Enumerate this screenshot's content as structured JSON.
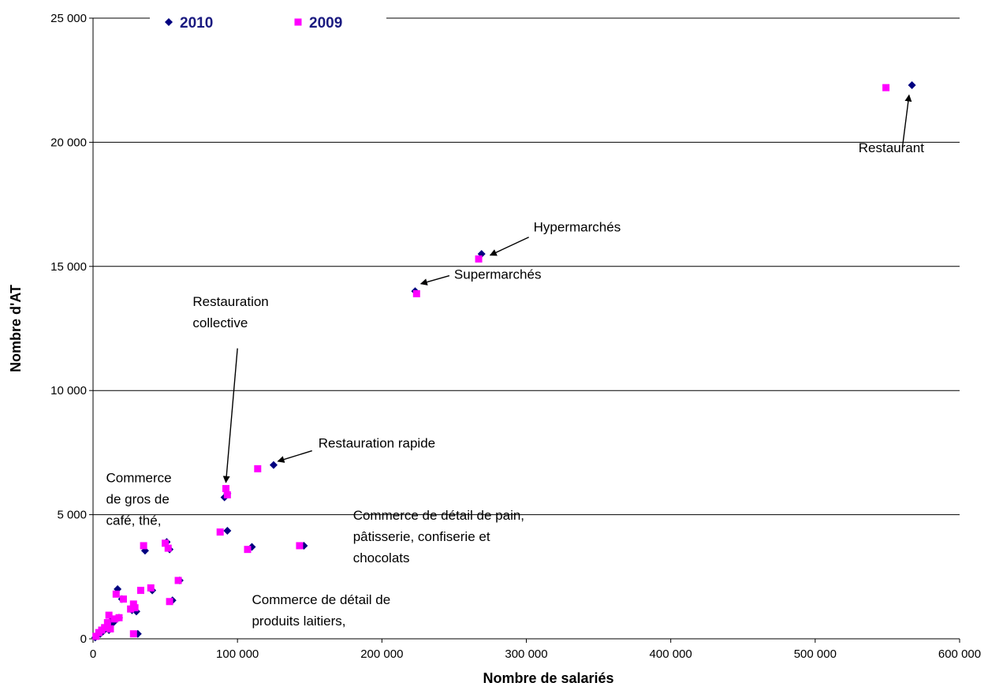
{
  "chart_data": {
    "type": "scatter",
    "title": "",
    "xlabel": "Nombre de salariés",
    "ylabel": "Nombre d'AT",
    "xlim": [
      0,
      600000
    ],
    "ylim": [
      0,
      25000
    ],
    "x_ticks": [
      0,
      100000,
      200000,
      300000,
      400000,
      500000,
      600000
    ],
    "x_tick_labels": [
      "0",
      "100 000",
      "200 000",
      "300 000",
      "400 000",
      "500 000",
      "600 000"
    ],
    "y_ticks": [
      0,
      5000,
      10000,
      15000,
      20000,
      25000
    ],
    "y_tick_labels": [
      "0",
      "5 000",
      "10 000",
      "15 000",
      "20 000",
      "25 000"
    ],
    "grid": "horizontal",
    "legend": "top",
    "series": [
      {
        "name": "2010",
        "color": "#000080",
        "marker": "diamond",
        "points": [
          [
            567000,
            22300
          ],
          [
            269000,
            15500
          ],
          [
            223000,
            14000
          ],
          [
            125000,
            7000
          ],
          [
            91000,
            5700
          ],
          [
            93000,
            5850
          ],
          [
            93000,
            4350
          ],
          [
            110000,
            3700
          ],
          [
            146000,
            3750
          ],
          [
            51000,
            3900
          ],
          [
            53000,
            3600
          ],
          [
            36000,
            3550
          ],
          [
            55000,
            1550
          ],
          [
            60000,
            2350
          ],
          [
            41000,
            1950
          ],
          [
            17000,
            2000
          ],
          [
            30000,
            1100
          ],
          [
            27000,
            1150
          ],
          [
            31000,
            200
          ],
          [
            20000,
            1600
          ],
          [
            18000,
            850
          ],
          [
            13000,
            750
          ],
          [
            12000,
            550
          ],
          [
            9000,
            450
          ],
          [
            7000,
            300
          ],
          [
            5000,
            200
          ],
          [
            3000,
            150
          ],
          [
            1500,
            50
          ],
          [
            11000,
            350
          ],
          [
            14000,
            650
          ]
        ]
      },
      {
        "name": "2009",
        "color": "#ff00ff",
        "marker": "square",
        "points": [
          [
            549000,
            22200
          ],
          [
            267000,
            15300
          ],
          [
            224000,
            13900
          ],
          [
            114000,
            6850
          ],
          [
            92000,
            6050
          ],
          [
            93000,
            5800
          ],
          [
            88000,
            4300
          ],
          [
            107000,
            3600
          ],
          [
            143000,
            3750
          ],
          [
            50000,
            3850
          ],
          [
            52000,
            3650
          ],
          [
            35000,
            3750
          ],
          [
            53000,
            1500
          ],
          [
            59000,
            2350
          ],
          [
            40000,
            2050
          ],
          [
            33000,
            1950
          ],
          [
            16000,
            1800
          ],
          [
            21000,
            1600
          ],
          [
            26000,
            1200
          ],
          [
            29000,
            1250
          ],
          [
            28000,
            1400
          ],
          [
            28000,
            200
          ],
          [
            18000,
            850
          ],
          [
            15000,
            800
          ],
          [
            11000,
            950
          ],
          [
            10000,
            650
          ],
          [
            8000,
            450
          ],
          [
            6000,
            350
          ],
          [
            4000,
            250
          ],
          [
            2000,
            100
          ],
          [
            12000,
            400
          ]
        ]
      }
    ],
    "annotations": [
      {
        "lines": [
          "Restaurant"
        ],
        "x": 530000,
        "y": 19600,
        "arrow_to": [
          565000,
          21900
        ]
      },
      {
        "lines": [
          "Hypermarchés"
        ],
        "x": 305000,
        "y": 16400,
        "arrow_to": [
          275000,
          15450
        ]
      },
      {
        "lines": [
          "Supermarchés"
        ],
        "x": 250000,
        "y": 14500,
        "arrow_to": [
          227000,
          14300
        ]
      },
      {
        "lines": [
          "Restauration",
          "collective"
        ],
        "x": 69000,
        "y": 13400,
        "arrow_to": [
          92000,
          6300
        ]
      },
      {
        "lines": [
          "Restauration  rapide"
        ],
        "x": 156000,
        "y": 7700,
        "arrow_to": [
          128000,
          7150
        ]
      },
      {
        "lines": [
          "Commerce",
          "de gros de",
          "café, thé,"
        ],
        "x": 9000,
        "y": 6300
      },
      {
        "lines": [
          "Commerce de détail de pain,",
          "pâtisserie, confiserie et",
          "chocolats"
        ],
        "x": 180000,
        "y": 4800
      },
      {
        "lines": [
          "Commerce de détail de",
          "produits laitiers,"
        ],
        "x": 110000,
        "y": 1400
      }
    ]
  }
}
